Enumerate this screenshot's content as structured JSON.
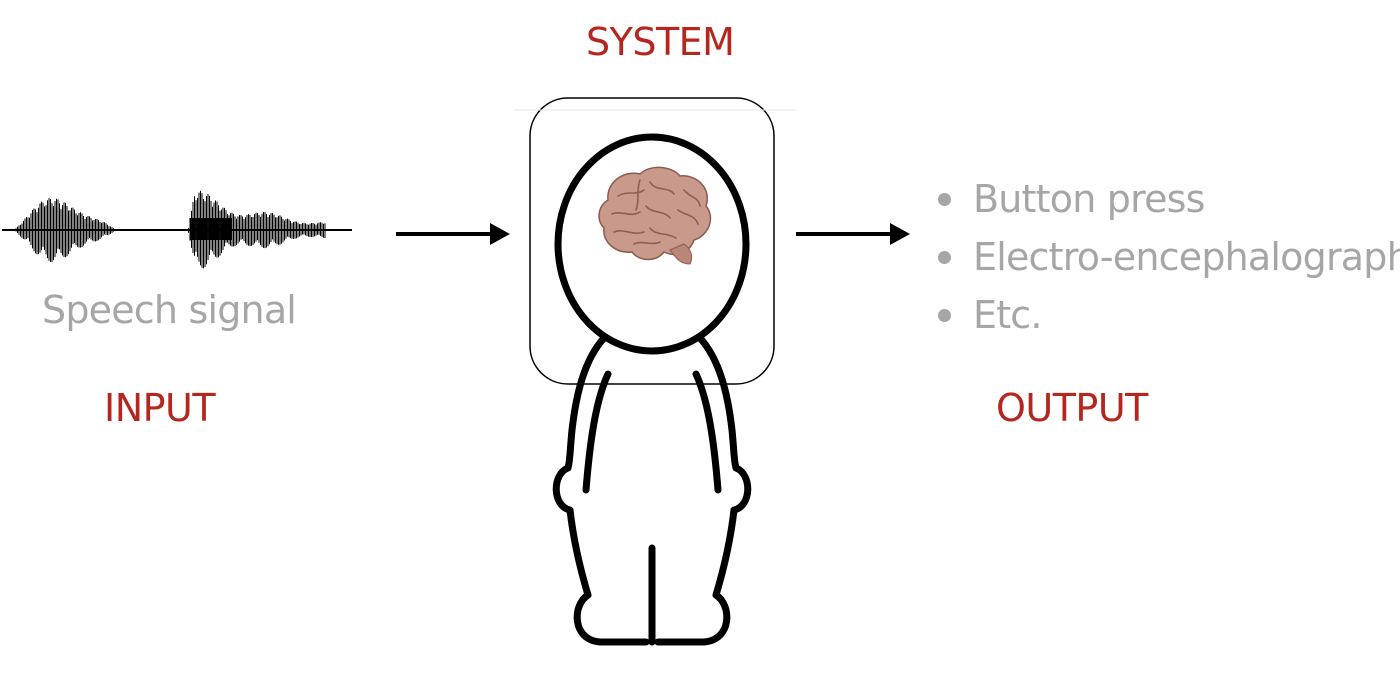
{
  "system": {
    "title": "SYSTEM"
  },
  "input": {
    "title": "INPUT",
    "signal_label": "Speech signal",
    "signal_icon": "waveform-icon"
  },
  "output": {
    "title": "OUTPUT",
    "items": [
      {
        "label": "Button press"
      },
      {
        "label": "Electro-encephalography"
      },
      {
        "label": "Etc."
      }
    ]
  },
  "figure": {
    "icon": "person-icon",
    "brain_icon": "brain-icon"
  },
  "colors": {
    "heading": "#b5261e",
    "muted": "#a6a6a6",
    "line": "#000000",
    "brain": "#c79a8a"
  }
}
